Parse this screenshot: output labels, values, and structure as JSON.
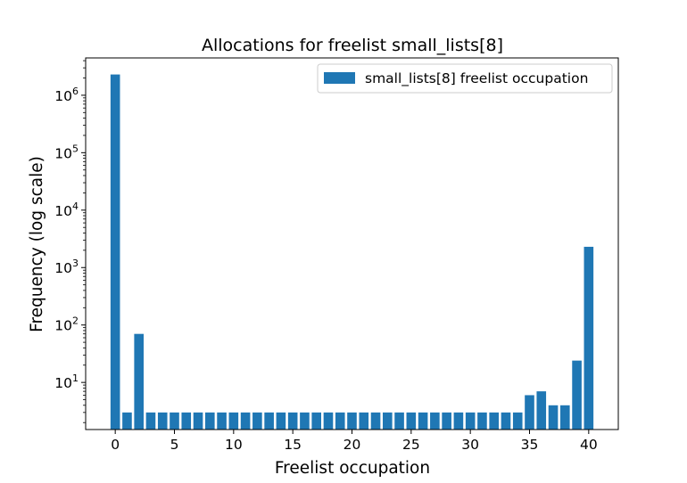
{
  "chart_data": {
    "type": "bar",
    "title": "Allocations for freelist small_lists[8]",
    "xlabel": "Freelist occupation",
    "ylabel": "Frequency (log scale)",
    "yscale": "log",
    "xlim": [
      -2.5,
      42.5
    ],
    "ylim_log10": [
      0.18,
      6.65
    ],
    "x_ticks": [
      0,
      5,
      10,
      15,
      20,
      25,
      30,
      35,
      40
    ],
    "y_ticks": [
      {
        "value": 10,
        "base": "10",
        "exp": "1"
      },
      {
        "value": 100,
        "base": "10",
        "exp": "2"
      },
      {
        "value": 1000,
        "base": "10",
        "exp": "3"
      },
      {
        "value": 10000,
        "base": "10",
        "exp": "4"
      },
      {
        "value": 100000,
        "base": "10",
        "exp": "5"
      },
      {
        "value": 1000000,
        "base": "10",
        "exp": "6"
      }
    ],
    "bar_color": "#1f77b4",
    "legend": {
      "label": "small_lists[8] freelist occupation",
      "position": "top-right"
    },
    "x": [
      0,
      1,
      2,
      3,
      4,
      5,
      6,
      7,
      8,
      9,
      10,
      11,
      12,
      13,
      14,
      15,
      16,
      17,
      18,
      19,
      20,
      21,
      22,
      23,
      24,
      25,
      26,
      27,
      28,
      29,
      30,
      31,
      32,
      33,
      34,
      35,
      36,
      37,
      38,
      39,
      40
    ],
    "values": [
      2300000,
      3,
      70,
      3,
      3,
      3,
      3,
      3,
      3,
      3,
      3,
      3,
      3,
      3,
      3,
      3,
      3,
      3,
      3,
      3,
      3,
      3,
      3,
      3,
      3,
      3,
      3,
      3,
      3,
      3,
      3,
      3,
      3,
      3,
      3,
      6,
      7,
      4,
      4,
      24,
      2300
    ]
  }
}
